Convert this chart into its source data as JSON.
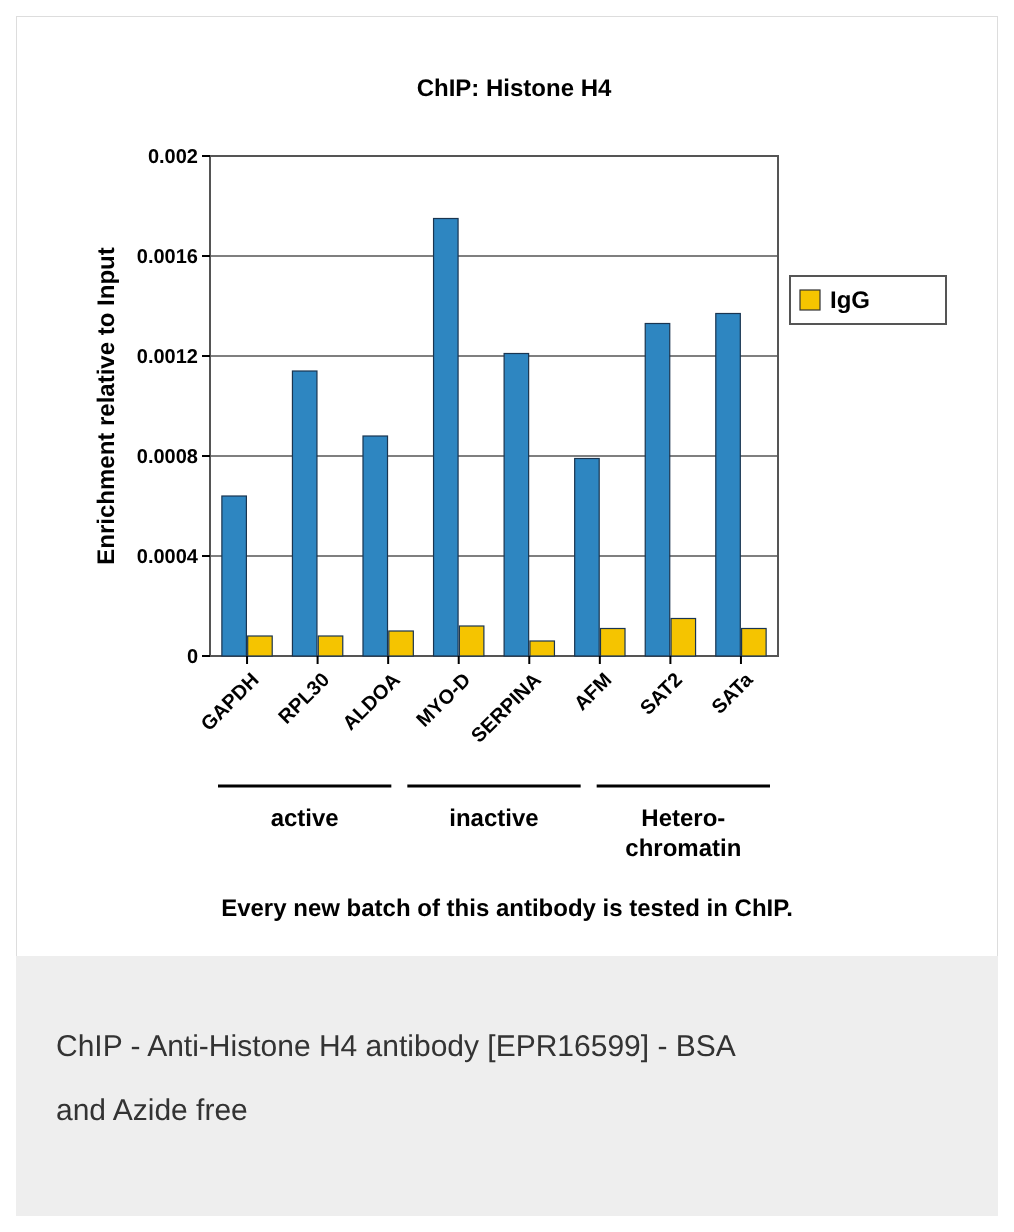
{
  "chart_data": {
    "type": "bar",
    "title": "ChIP: Histone H4",
    "ylabel": "Enrichment relative to Input",
    "categories": [
      "GAPDH",
      "RPL30",
      "ALDOA",
      "MYO-D",
      "SERPINA",
      "AFM",
      "SAT2",
      "SATa"
    ],
    "series": [
      {
        "color": "#2e86c1",
        "values": [
          0.00064,
          0.00114,
          0.00088,
          0.00175,
          0.00121,
          0.00079,
          0.00133,
          0.00137
        ]
      },
      {
        "name": "IgG",
        "color": "#f5c400",
        "values": [
          8e-05,
          8e-05,
          0.0001,
          0.00012,
          6e-05,
          0.00011,
          0.00015,
          0.00011
        ]
      }
    ],
    "ylim": [
      0,
      0.002
    ],
    "yticks": [
      0,
      0.0004,
      0.0008,
      0.0012,
      0.0016,
      0.002
    ],
    "grid": "y",
    "legend": "right",
    "annotations": [
      "active",
      "inactive",
      "Hetero-chromatin",
      "Every new batch of this antibody is tested in ChIP.",
      "ChIP - Anti-Histone H4 antibody [EPR16599] - BSA and Azide free"
    ]
  }
}
